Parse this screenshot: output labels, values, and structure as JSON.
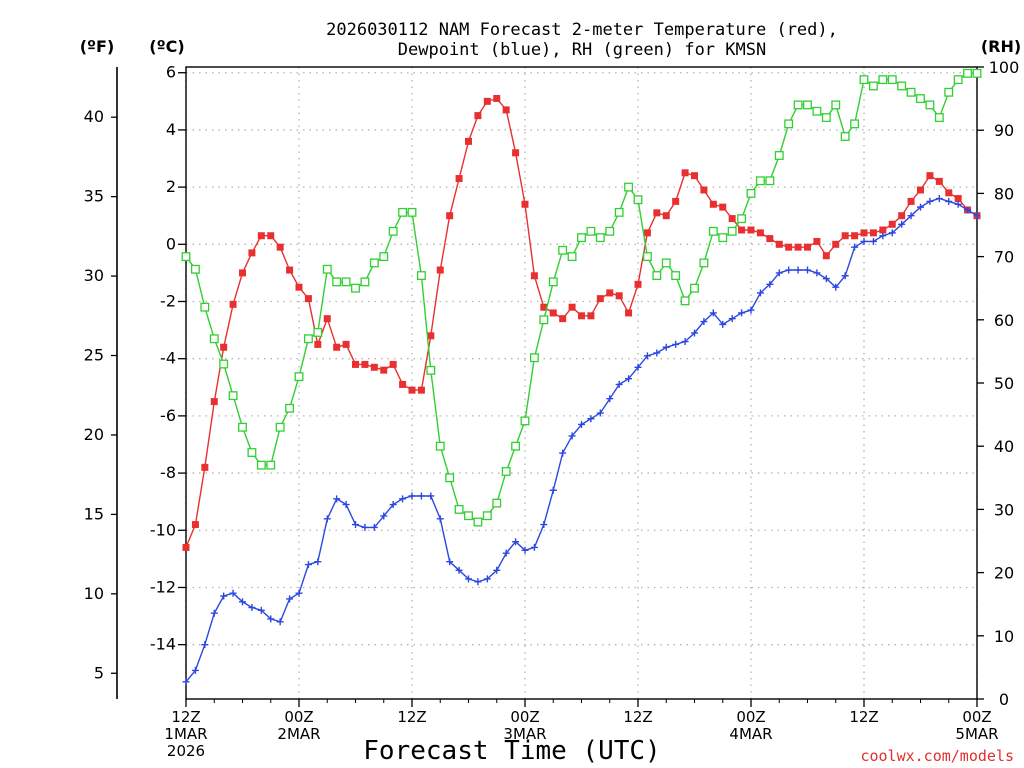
{
  "chart_data": {
    "type": "line",
    "title_lines": [
      "2026030112 NAM Forecast 2-meter Temperature (red),",
      "Dewpoint (blue), RH (green) for KMSN"
    ],
    "left_units": {
      "fahrenheit": "(ºF)",
      "celsius": "(ºC)"
    },
    "right_unit": "(RH)",
    "xlabel": "Forecast Time (UTC)",
    "credit": "coolwx.com/models",
    "x_unit": "forecast hours from 12Z 1MAR 2026",
    "xlim": [
      0,
      84
    ],
    "ylim_celsius": [
      -15.9,
      6.2
    ],
    "ylim_rh": [
      0,
      100
    ],
    "celsius_ticks": [
      6,
      4,
      2,
      0,
      -2,
      -4,
      -6,
      -8,
      -10,
      -12,
      -14
    ],
    "fahrenheit_ticks": [
      40,
      35,
      30,
      25,
      20,
      15,
      10,
      5
    ],
    "rh_ticks": [
      100,
      90,
      80,
      70,
      60,
      50,
      40,
      30,
      20,
      10,
      0
    ],
    "x_ticks": [
      {
        "hour": 0,
        "lines": [
          "12Z",
          "1MAR",
          "2026"
        ]
      },
      {
        "hour": 12,
        "lines": [
          "00Z",
          "2MAR"
        ]
      },
      {
        "hour": 24,
        "lines": [
          "12Z"
        ]
      },
      {
        "hour": 36,
        "lines": [
          "00Z",
          "3MAR"
        ]
      },
      {
        "hour": 48,
        "lines": [
          "12Z"
        ]
      },
      {
        "hour": 60,
        "lines": [
          "00Z",
          "4MAR"
        ]
      },
      {
        "hour": 72,
        "lines": [
          "12Z"
        ]
      },
      {
        "hour": 84,
        "lines": [
          "00Z",
          "5MAR"
        ]
      }
    ],
    "grid": true,
    "series": [
      {
        "name": "Temperature",
        "color": "#e83030",
        "marker": "filled-square",
        "axis": "celsius",
        "x": [
          0,
          1,
          2,
          3,
          4,
          5,
          6,
          7,
          8,
          9,
          10,
          11,
          12,
          13,
          14,
          15,
          16,
          17,
          18,
          19,
          20,
          21,
          22,
          23,
          24,
          25,
          26,
          27,
          28,
          29,
          30,
          31,
          32,
          33,
          34,
          35,
          36,
          37,
          38,
          39,
          40,
          41,
          42,
          43,
          44,
          45,
          46,
          47,
          48,
          49,
          50,
          51,
          52,
          53,
          54,
          55,
          56,
          57,
          58,
          59,
          60,
          61,
          62,
          63,
          64,
          65,
          66,
          67,
          68,
          69,
          70,
          71,
          72,
          73,
          74,
          75,
          76,
          77,
          78,
          79,
          80,
          81,
          82,
          83,
          84
        ],
        "y": [
          -10.6,
          -9.8,
          -7.8,
          -5.5,
          -3.6,
          -2.1,
          -1.0,
          -0.3,
          0.3,
          0.3,
          -0.1,
          -0.9,
          -1.5,
          -1.9,
          -3.5,
          -2.6,
          -3.6,
          -3.5,
          -4.2,
          -4.2,
          -4.3,
          -4.4,
          -4.2,
          -4.9,
          -5.1,
          -5.1,
          -3.2,
          -0.9,
          1.0,
          2.3,
          3.6,
          4.5,
          5.0,
          5.1,
          4.7,
          3.2,
          1.4,
          -1.1,
          -2.2,
          -2.4,
          -2.6,
          -2.2,
          -2.5,
          -2.5,
          -1.9,
          -1.7,
          -1.8,
          -2.4,
          -1.4,
          0.4,
          1.1,
          1.0,
          1.5,
          2.5,
          2.4,
          1.9,
          1.4,
          1.3,
          0.9,
          0.5,
          0.5,
          0.4,
          0.2,
          0.0,
          -0.1,
          -0.1,
          -0.1,
          0.1,
          -0.4,
          0.0,
          0.3,
          0.3,
          0.4,
          0.4,
          0.5,
          0.7,
          1.0,
          1.5,
          1.9,
          2.4,
          2.2,
          1.8,
          1.6,
          1.2,
          1.0
        ]
      },
      {
        "name": "Dewpoint",
        "color": "#2c48e0",
        "marker": "plus",
        "axis": "celsius",
        "x": [
          0,
          1,
          2,
          3,
          4,
          5,
          6,
          7,
          8,
          9,
          10,
          11,
          12,
          13,
          14,
          15,
          16,
          17,
          18,
          19,
          20,
          21,
          22,
          23,
          24,
          25,
          26,
          27,
          28,
          29,
          30,
          31,
          32,
          33,
          34,
          35,
          36,
          37,
          38,
          39,
          40,
          41,
          42,
          43,
          44,
          45,
          46,
          47,
          48,
          49,
          50,
          51,
          52,
          53,
          54,
          55,
          56,
          57,
          58,
          59,
          60,
          61,
          62,
          63,
          64,
          65,
          66,
          67,
          68,
          69,
          70,
          71,
          72,
          73,
          74,
          75,
          76,
          77,
          78,
          79,
          80,
          81,
          82,
          83,
          84
        ],
        "y": [
          -15.3,
          -14.9,
          -14.0,
          -12.9,
          -12.3,
          -12.2,
          -12.5,
          -12.7,
          -12.8,
          -13.1,
          -13.2,
          -12.4,
          -12.2,
          -11.2,
          -11.1,
          -9.6,
          -8.9,
          -9.1,
          -9.8,
          -9.9,
          -9.9,
          -9.5,
          -9.1,
          -8.9,
          -8.8,
          -8.8,
          -8.8,
          -9.6,
          -11.1,
          -11.4,
          -11.7,
          -11.8,
          -11.7,
          -11.4,
          -10.8,
          -10.4,
          -10.7,
          -10.6,
          -9.8,
          -8.6,
          -7.3,
          -6.7,
          -6.3,
          -6.1,
          -5.9,
          -5.4,
          -4.9,
          -4.7,
          -4.3,
          -3.9,
          -3.8,
          -3.6,
          -3.5,
          -3.4,
          -3.1,
          -2.7,
          -2.4,
          -2.8,
          -2.6,
          -2.4,
          -2.3,
          -1.7,
          -1.4,
          -1.0,
          -0.9,
          -0.9,
          -0.9,
          -1.0,
          -1.2,
          -1.5,
          -1.1,
          -0.1,
          0.1,
          0.1,
          0.3,
          0.4,
          0.7,
          1.0,
          1.3,
          1.5,
          1.6,
          1.5,
          1.4,
          1.2,
          1.0
        ]
      },
      {
        "name": "RH",
        "color": "#30d030",
        "marker": "open-square",
        "axis": "rh",
        "x": [
          0,
          1,
          2,
          3,
          4,
          5,
          6,
          7,
          8,
          9,
          10,
          11,
          12,
          13,
          14,
          15,
          16,
          17,
          18,
          19,
          20,
          21,
          22,
          23,
          24,
          25,
          26,
          27,
          28,
          29,
          30,
          31,
          32,
          33,
          34,
          35,
          36,
          37,
          38,
          39,
          40,
          41,
          42,
          43,
          44,
          45,
          46,
          47,
          48,
          49,
          50,
          51,
          52,
          53,
          54,
          55,
          56,
          57,
          58,
          59,
          60,
          61,
          62,
          63,
          64,
          65,
          66,
          67,
          68,
          69,
          70,
          71,
          72,
          73,
          74,
          75,
          76,
          77,
          78,
          79,
          80,
          81,
          82,
          83,
          84
        ],
        "y": [
          70,
          68,
          62,
          57,
          53,
          48,
          43,
          39,
          37,
          37,
          43,
          46,
          51,
          57,
          58,
          68,
          66,
          66,
          65,
          66,
          69,
          70,
          74,
          77,
          77,
          67,
          52,
          40,
          35,
          30,
          29,
          28,
          29,
          31,
          36,
          40,
          44,
          54,
          60,
          66,
          71,
          70,
          73,
          74,
          73,
          74,
          77,
          81,
          79,
          70,
          67,
          69,
          67,
          63,
          65,
          69,
          74,
          73,
          74,
          76,
          80,
          82,
          82,
          86,
          91,
          94,
          94,
          93,
          92,
          94,
          89,
          91,
          98,
          97,
          98,
          98,
          97,
          96,
          95,
          94,
          92,
          96,
          98,
          99,
          99
        ]
      }
    ]
  }
}
